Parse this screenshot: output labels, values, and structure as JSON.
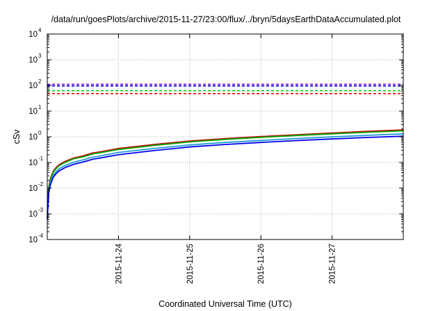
{
  "chart_data": {
    "type": "line",
    "title": "/data/run/goesPlots/archive/2015-11-27/23:00/flux/../bryn/5daysEarthDataAccumulated.plot",
    "xlabel": "Coordinated Universal Time (UTC)",
    "ylabel": "cSv",
    "yscale": "log",
    "ylim": [
      0.0001,
      10000
    ],
    "y_ticks": [
      {
        "base": "10",
        "exp": "-4",
        "value": 0.0001
      },
      {
        "base": "10",
        "exp": "-3",
        "value": 0.001
      },
      {
        "base": "10",
        "exp": "-2",
        "value": 0.01
      },
      {
        "base": "10",
        "exp": "-1",
        "value": 0.1
      },
      {
        "base": "10",
        "exp": "0",
        "value": 1
      },
      {
        "base": "10",
        "exp": "1",
        "value": 10
      },
      {
        "base": "10",
        "exp": "2",
        "value": 100
      },
      {
        "base": "10",
        "exp": "3",
        "value": 1000
      },
      {
        "base": "10",
        "exp": "4",
        "value": 10000
      }
    ],
    "xlim": [
      "2015-11-23 00:00",
      "2015-11-28 00:00"
    ],
    "x_ticks": [
      "2015-11-24",
      "2015-11-25",
      "2015-11-26",
      "2015-11-27"
    ],
    "grid": true,
    "legend": "none",
    "x": [
      "2015-11-23 00:00",
      "2015-11-23 00:30",
      "2015-11-23 01:00",
      "2015-11-23 02:00",
      "2015-11-23 03:00",
      "2015-11-23 04:00",
      "2015-11-23 06:00",
      "2015-11-23 09:00",
      "2015-11-23 12:00",
      "2015-11-23 15:00",
      "2015-11-23 16:00",
      "2015-11-23 18:00",
      "2015-11-24 00:00",
      "2015-11-24 12:00",
      "2015-11-25 00:00",
      "2015-11-25 12:00",
      "2015-11-26 00:00",
      "2015-11-26 12:00",
      "2015-11-27 00:00",
      "2015-11-27 12:00",
      "2015-11-28 00:00"
    ],
    "series": [
      {
        "color": "#cc0000",
        "values": [
          0.001,
          0.011,
          0.023,
          0.045,
          0.064,
          0.082,
          0.11,
          0.15,
          0.18,
          0.23,
          0.24,
          0.26,
          0.35,
          0.5,
          0.68,
          0.85,
          1.02,
          1.2,
          1.4,
          1.62,
          1.85
        ]
      },
      {
        "color": "#00aa00",
        "values": [
          0.0009,
          0.01,
          0.021,
          0.041,
          0.058,
          0.075,
          0.1,
          0.14,
          0.165,
          0.21,
          0.22,
          0.24,
          0.32,
          0.46,
          0.63,
          0.79,
          0.95,
          1.12,
          1.3,
          1.5,
          1.7
        ]
      },
      {
        "color": "#1f9ad0",
        "values": [
          0.0007,
          0.008,
          0.016,
          0.031,
          0.044,
          0.057,
          0.076,
          0.103,
          0.125,
          0.158,
          0.165,
          0.18,
          0.245,
          0.35,
          0.48,
          0.6,
          0.72,
          0.85,
          0.99,
          1.14,
          1.3
        ]
      },
      {
        "color": "#0000ee",
        "values": [
          0.0006,
          0.0065,
          0.013,
          0.026,
          0.037,
          0.047,
          0.063,
          0.085,
          0.104,
          0.13,
          0.137,
          0.15,
          0.2,
          0.29,
          0.4,
          0.5,
          0.6,
          0.71,
          0.82,
          0.94,
          1.05
        ]
      }
    ],
    "thresholds": [
      {
        "color": "#7a00cc",
        "value": 110
      },
      {
        "color": "#0000ee",
        "value": 95
      },
      {
        "color": "#00cc00",
        "value": 62
      },
      {
        "color": "#ee0000",
        "value": 48
      }
    ]
  }
}
